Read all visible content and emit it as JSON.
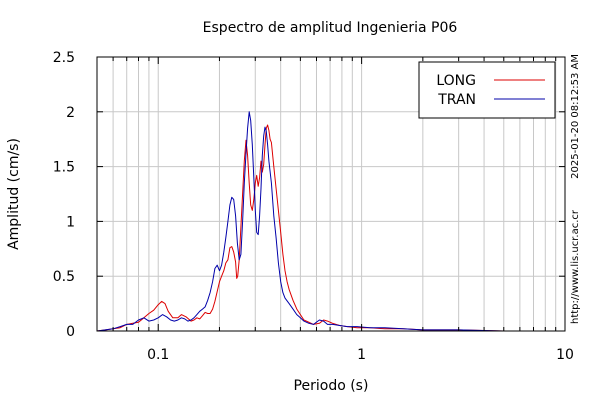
{
  "chart_data": {
    "type": "line",
    "title": "Espectro de amplitud Ingenieria P06",
    "xlabel": "Periodo (s)",
    "ylabel": "Amplitud (cm/s)",
    "x_scale": "log",
    "xlim": [
      0.05,
      10
    ],
    "ylim": [
      0,
      2.5
    ],
    "grid": true,
    "legend_position": "top-right",
    "x_tick_labels": [
      {
        "value": 0.1,
        "label": "0.1"
      },
      {
        "value": 1,
        "label": "1"
      },
      {
        "value": 10,
        "label": "10"
      }
    ],
    "y_tick_labels": [
      {
        "value": 0,
        "label": "0"
      },
      {
        "value": 0.5,
        "label": "0.5"
      },
      {
        "value": 1,
        "label": "1"
      },
      {
        "value": 1.5,
        "label": "1.5"
      },
      {
        "value": 2,
        "label": "2"
      },
      {
        "value": 2.5,
        "label": "2.5"
      }
    ],
    "series": [
      {
        "name": "LONG",
        "color": "#dd0000",
        "points": [
          [
            0.05,
            0.0
          ],
          [
            0.055,
            0.01
          ],
          [
            0.06,
            0.02
          ],
          [
            0.065,
            0.03
          ],
          [
            0.07,
            0.06
          ],
          [
            0.075,
            0.07
          ],
          [
            0.08,
            0.08
          ],
          [
            0.085,
            0.12
          ],
          [
            0.09,
            0.16
          ],
          [
            0.095,
            0.19
          ],
          [
            0.1,
            0.24
          ],
          [
            0.104,
            0.27
          ],
          [
            0.108,
            0.25
          ],
          [
            0.112,
            0.18
          ],
          [
            0.118,
            0.12
          ],
          [
            0.125,
            0.12
          ],
          [
            0.13,
            0.15
          ],
          [
            0.137,
            0.13
          ],
          [
            0.145,
            0.09
          ],
          [
            0.15,
            0.1
          ],
          [
            0.155,
            0.12
          ],
          [
            0.16,
            0.11
          ],
          [
            0.165,
            0.14
          ],
          [
            0.17,
            0.17
          ],
          [
            0.175,
            0.16
          ],
          [
            0.18,
            0.16
          ],
          [
            0.185,
            0.2
          ],
          [
            0.19,
            0.27
          ],
          [
            0.195,
            0.36
          ],
          [
            0.2,
            0.45
          ],
          [
            0.205,
            0.5
          ],
          [
            0.21,
            0.55
          ],
          [
            0.215,
            0.62
          ],
          [
            0.22,
            0.65
          ],
          [
            0.225,
            0.76
          ],
          [
            0.23,
            0.77
          ],
          [
            0.235,
            0.72
          ],
          [
            0.24,
            0.63
          ],
          [
            0.243,
            0.48
          ],
          [
            0.246,
            0.5
          ],
          [
            0.25,
            0.65
          ],
          [
            0.255,
            0.95
          ],
          [
            0.26,
            1.25
          ],
          [
            0.265,
            1.55
          ],
          [
            0.27,
            1.74
          ],
          [
            0.275,
            1.6
          ],
          [
            0.28,
            1.35
          ],
          [
            0.285,
            1.15
          ],
          [
            0.29,
            1.1
          ],
          [
            0.295,
            1.2
          ],
          [
            0.3,
            1.35
          ],
          [
            0.305,
            1.42
          ],
          [
            0.31,
            1.32
          ],
          [
            0.315,
            1.4
          ],
          [
            0.32,
            1.55
          ],
          [
            0.325,
            1.45
          ],
          [
            0.33,
            1.52
          ],
          [
            0.335,
            1.7
          ],
          [
            0.34,
            1.85
          ],
          [
            0.345,
            1.88
          ],
          [
            0.35,
            1.83
          ],
          [
            0.355,
            1.75
          ],
          [
            0.36,
            1.72
          ],
          [
            0.37,
            1.5
          ],
          [
            0.38,
            1.3
          ],
          [
            0.39,
            1.1
          ],
          [
            0.4,
            0.9
          ],
          [
            0.41,
            0.7
          ],
          [
            0.42,
            0.55
          ],
          [
            0.43,
            0.45
          ],
          [
            0.44,
            0.38
          ],
          [
            0.46,
            0.28
          ],
          [
            0.48,
            0.2
          ],
          [
            0.5,
            0.15
          ],
          [
            0.52,
            0.1
          ],
          [
            0.55,
            0.08
          ],
          [
            0.58,
            0.06
          ],
          [
            0.62,
            0.07
          ],
          [
            0.65,
            0.1
          ],
          [
            0.68,
            0.09
          ],
          [
            0.72,
            0.07
          ],
          [
            0.78,
            0.05
          ],
          [
            0.85,
            0.04
          ],
          [
            0.95,
            0.03
          ],
          [
            1.1,
            0.03
          ],
          [
            1.3,
            0.02
          ],
          [
            1.6,
            0.02
          ],
          [
            2.0,
            0.01
          ],
          [
            3.0,
            0.01
          ],
          [
            5.0,
            0.0
          ],
          [
            10.0,
            0.0
          ]
        ]
      },
      {
        "name": "TRAN",
        "color": "#0000aa",
        "points": [
          [
            0.05,
            0.0
          ],
          [
            0.055,
            0.01
          ],
          [
            0.06,
            0.02
          ],
          [
            0.065,
            0.04
          ],
          [
            0.07,
            0.06
          ],
          [
            0.075,
            0.06
          ],
          [
            0.08,
            0.1
          ],
          [
            0.085,
            0.12
          ],
          [
            0.09,
            0.09
          ],
          [
            0.095,
            0.1
          ],
          [
            0.1,
            0.12
          ],
          [
            0.105,
            0.15
          ],
          [
            0.11,
            0.13
          ],
          [
            0.115,
            0.1
          ],
          [
            0.12,
            0.09
          ],
          [
            0.125,
            0.1
          ],
          [
            0.13,
            0.12
          ],
          [
            0.135,
            0.11
          ],
          [
            0.14,
            0.09
          ],
          [
            0.145,
            0.1
          ],
          [
            0.15,
            0.12
          ],
          [
            0.155,
            0.15
          ],
          [
            0.16,
            0.18
          ],
          [
            0.165,
            0.2
          ],
          [
            0.17,
            0.22
          ],
          [
            0.175,
            0.28
          ],
          [
            0.18,
            0.35
          ],
          [
            0.185,
            0.45
          ],
          [
            0.19,
            0.57
          ],
          [
            0.195,
            0.6
          ],
          [
            0.2,
            0.55
          ],
          [
            0.205,
            0.6
          ],
          [
            0.21,
            0.72
          ],
          [
            0.215,
            0.85
          ],
          [
            0.22,
            1.0
          ],
          [
            0.225,
            1.15
          ],
          [
            0.23,
            1.22
          ],
          [
            0.235,
            1.2
          ],
          [
            0.24,
            1.05
          ],
          [
            0.245,
            0.8
          ],
          [
            0.25,
            0.65
          ],
          [
            0.255,
            0.7
          ],
          [
            0.26,
            1.0
          ],
          [
            0.265,
            1.35
          ],
          [
            0.27,
            1.62
          ],
          [
            0.275,
            1.85
          ],
          [
            0.28,
            2.0
          ],
          [
            0.285,
            1.92
          ],
          [
            0.29,
            1.7
          ],
          [
            0.295,
            1.4
          ],
          [
            0.3,
            1.1
          ],
          [
            0.305,
            0.9
          ],
          [
            0.31,
            0.88
          ],
          [
            0.315,
            1.05
          ],
          [
            0.32,
            1.3
          ],
          [
            0.325,
            1.6
          ],
          [
            0.33,
            1.78
          ],
          [
            0.335,
            1.86
          ],
          [
            0.34,
            1.82
          ],
          [
            0.345,
            1.7
          ],
          [
            0.35,
            1.55
          ],
          [
            0.36,
            1.35
          ],
          [
            0.37,
            1.05
          ],
          [
            0.38,
            0.85
          ],
          [
            0.39,
            0.62
          ],
          [
            0.4,
            0.45
          ],
          [
            0.41,
            0.35
          ],
          [
            0.42,
            0.3
          ],
          [
            0.44,
            0.25
          ],
          [
            0.46,
            0.2
          ],
          [
            0.48,
            0.15
          ],
          [
            0.5,
            0.12
          ],
          [
            0.52,
            0.09
          ],
          [
            0.55,
            0.07
          ],
          [
            0.58,
            0.06
          ],
          [
            0.62,
            0.1
          ],
          [
            0.65,
            0.09
          ],
          [
            0.68,
            0.06
          ],
          [
            0.72,
            0.06
          ],
          [
            0.78,
            0.05
          ],
          [
            0.85,
            0.04
          ],
          [
            0.95,
            0.04
          ],
          [
            1.1,
            0.03
          ],
          [
            1.3,
            0.03
          ],
          [
            1.6,
            0.02
          ],
          [
            2.0,
            0.01
          ],
          [
            3.0,
            0.01
          ],
          [
            5.0,
            0.0
          ],
          [
            10.0,
            0.0
          ]
        ]
      }
    ],
    "side_annotations": [
      "2025-01-20 08:12:53 AM",
      "http://www.lis.ucr.ac.cr"
    ]
  }
}
